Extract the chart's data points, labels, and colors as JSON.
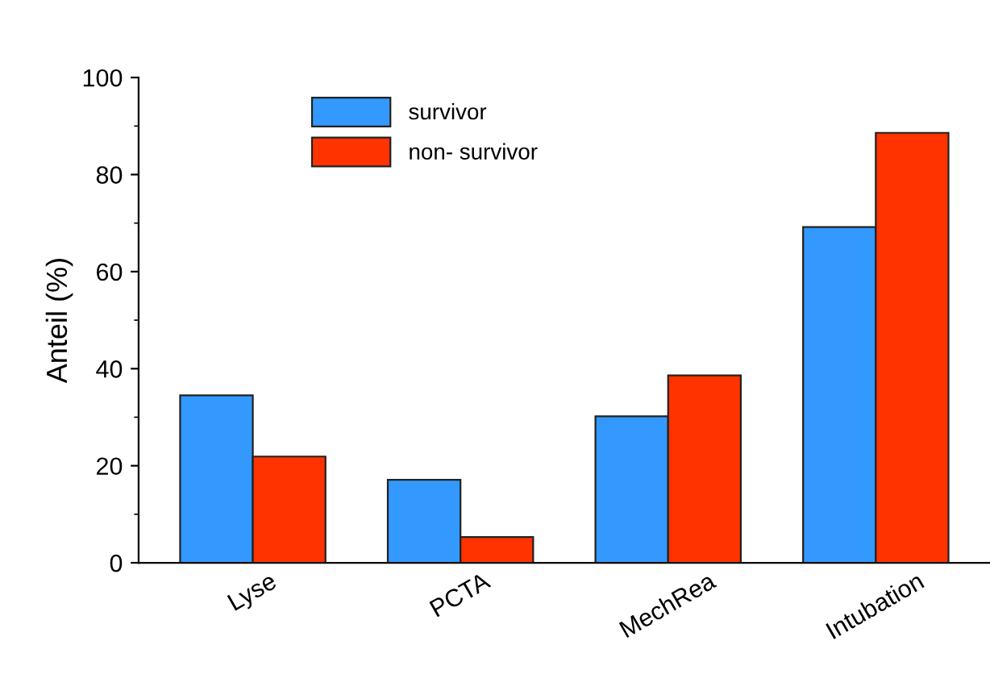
{
  "chart_data": {
    "type": "bar",
    "ylabel": "Anteil (%)",
    "categories": [
      "Lyse",
      "PCTA",
      "MechRea",
      "Intubation"
    ],
    "series": [
      {
        "name": "survivor",
        "color": "#3399ff",
        "values": [
          34.5,
          17.1,
          30.2,
          69.2
        ]
      },
      {
        "name": "non- survivor",
        "color": "#ff3300",
        "values": [
          21.9,
          5.3,
          38.6,
          88.6
        ]
      }
    ],
    "ylim": [
      0,
      100
    ],
    "yticks": [
      0,
      20,
      40,
      60,
      80,
      100
    ],
    "grid": false,
    "legend": "top left"
  }
}
